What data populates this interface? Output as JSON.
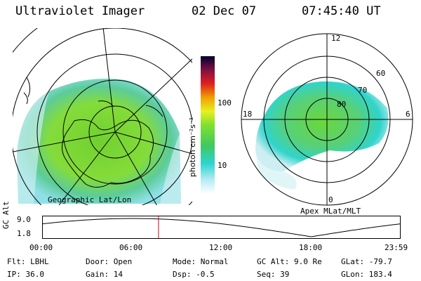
{
  "header": {
    "title": "Ultraviolet Imager",
    "date": "02 Dec 07",
    "time": "07:45:40 UT"
  },
  "colorbar": {
    "unit_label": "photon cm⁻²s⁻¹",
    "ticks": [
      "100",
      "10"
    ]
  },
  "left_map": {
    "caption": "Geographic Lat/Lon"
  },
  "right_map": {
    "caption": "Apex MLat/MLT",
    "mlt_labels": {
      "top": "12",
      "left": "18",
      "right": "6",
      "bottom": "0"
    },
    "mlat_labels": [
      "60",
      "70",
      "80"
    ]
  },
  "altitude_plot": {
    "ylabel": "GC Alt",
    "y_ticks": [
      "9.0",
      "1.8"
    ],
    "x_ticks": [
      "00:00",
      "06:00",
      "12:00",
      "18:00",
      "23:59"
    ],
    "current_time_hours": 7.76,
    "line_color": "#000000",
    "marker_color": "#d0021b"
  },
  "info": {
    "filter": "Flt: LBHL",
    "ip": "IP: 36.0",
    "door": "Door: Open",
    "gain": "Gain: 14",
    "mode": "Mode: Normal",
    "dsp": "Dsp:   -0.5",
    "gc_alt": "GC Alt: 9.0 Re",
    "seq": "Seq: 39",
    "glat": "GLat: -79.7",
    "glon": "GLon: 183.4"
  }
}
